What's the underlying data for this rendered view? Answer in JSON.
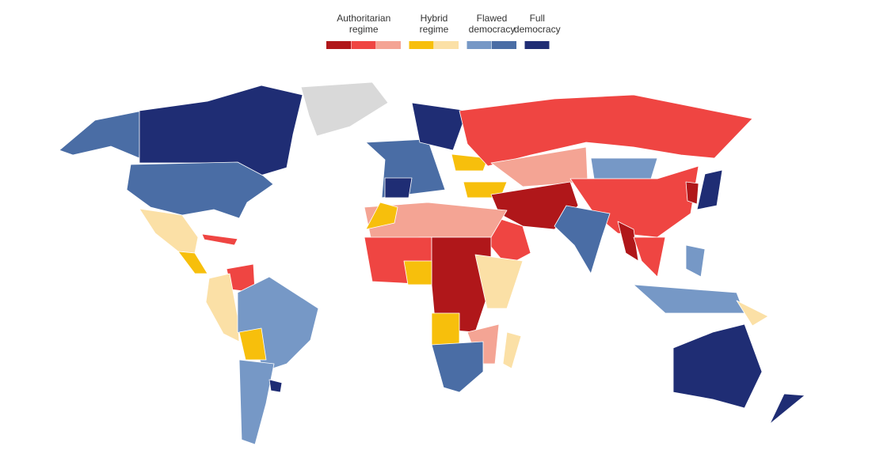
{
  "legend": {
    "items": [
      {
        "label_lines": [
          "Authoritarian",
          "regime"
        ],
        "shades": [
          "#b0171a",
          "#ef4542",
          "#f4a494"
        ]
      },
      {
        "label_lines": [
          "Hybrid",
          "regime"
        ],
        "shades": [
          "#f7bf0c",
          "#fbe0a6"
        ]
      },
      {
        "label_lines": [
          "Flawed",
          "democracy"
        ],
        "shades": [
          "#7698c6",
          "#4a6da5"
        ]
      },
      {
        "label_lines": [
          "Full",
          "democracy"
        ],
        "shades": [
          "#1f2d74"
        ]
      }
    ]
  }
}
